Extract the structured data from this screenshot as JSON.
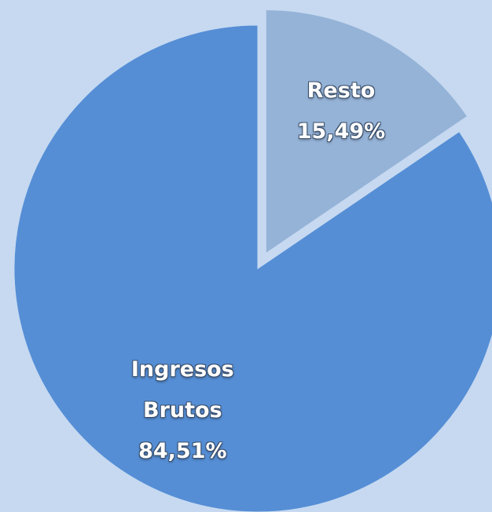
{
  "chart_data": {
    "type": "pie",
    "categories": [
      "Ingresos Brutos",
      "Resto"
    ],
    "values": [
      84.51,
      15.49
    ],
    "value_labels": [
      "84,51%",
      "15,49%"
    ],
    "colors": [
      "#558ed5",
      "#95b3d7"
    ]
  }
}
